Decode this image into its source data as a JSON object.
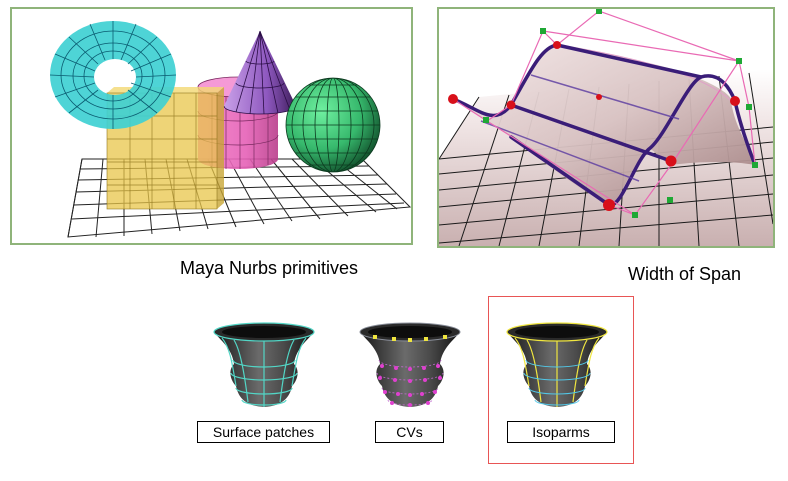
{
  "captions": {
    "primitives": "Maya Nurbs primitives",
    "span": "Width of Span"
  },
  "vase_labels": [
    "Surface patches",
    "CVs",
    "Isoparms"
  ],
  "colors": {
    "panel_border": "#8fb47a",
    "highlight_border": "#e85555",
    "torus": "#3fd0d2",
    "cube": "#e8c64a",
    "cylinder": "#ec6fc0",
    "cone": "#a06fd0",
    "sphere": "#3ec77a",
    "cv_point": "#d8101a",
    "vase_wire": "#52d6c6",
    "cv_marker": "#e040d0",
    "isoparm": "#f0e640"
  }
}
